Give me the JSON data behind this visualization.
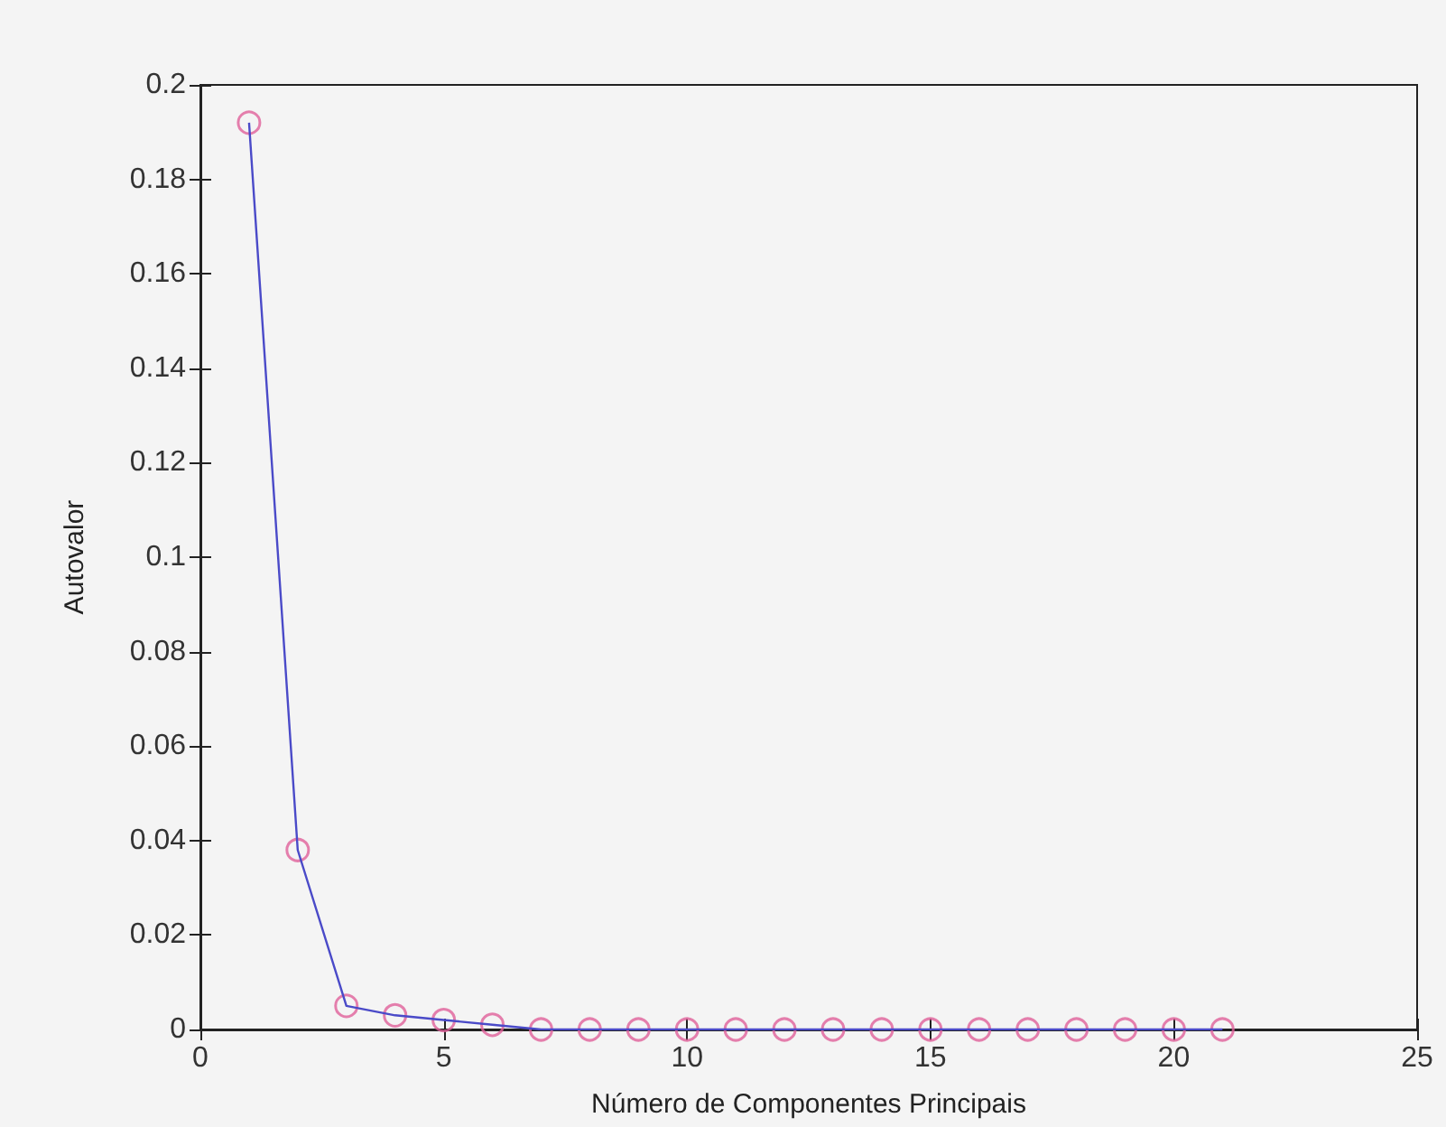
{
  "chart_data": {
    "type": "line",
    "xlabel": "Número de Componentes Principais",
    "ylabel": "Autovalor",
    "x": [
      1,
      2,
      3,
      4,
      5,
      6,
      7,
      8,
      9,
      10,
      11,
      12,
      13,
      14,
      15,
      16,
      17,
      18,
      19,
      20,
      21
    ],
    "series": [
      {
        "marker": "none",
        "color": "#4a4ac8",
        "values": [
          0.192,
          0.038,
          0.005,
          0.003,
          0.002,
          0.001,
          0,
          0,
          0,
          0,
          0,
          0,
          0,
          0,
          0,
          0,
          0,
          0,
          0,
          0,
          0
        ]
      },
      {
        "type": "scatter",
        "marker": "circle",
        "color": "#e0609a",
        "values": [
          0.192,
          0.038,
          0.005,
          0.003,
          0.002,
          0.001,
          0,
          0,
          0,
          0,
          0,
          0,
          0,
          0,
          0,
          0,
          0,
          0,
          0,
          0,
          0
        ]
      }
    ],
    "line_style": "solid",
    "xlim": [
      0,
      25
    ],
    "xticks": [
      0,
      5,
      10,
      15,
      20,
      25
    ],
    "ylim": [
      0,
      0.2
    ],
    "yticks": [
      0,
      0.02,
      0.04,
      0.06,
      0.08,
      0.1,
      0.12,
      0.14,
      0.16,
      0.18,
      0.2
    ]
  }
}
